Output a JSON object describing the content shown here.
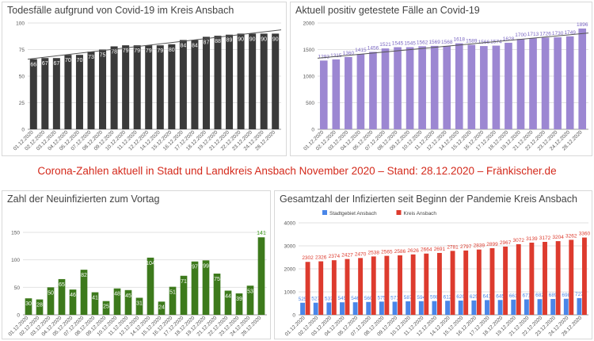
{
  "banner": "Corona-Zahlen aktuell in Stadt und Landkreis Ansbach November 2020 – Stand: 28.12.2020 – Fränkischer.de",
  "chart_data": [
    {
      "type": "bar",
      "title": "Todesfälle aufgrund von Covid-19 im Kreis Ansbach",
      "categories": [
        "01.12.2020",
        "02.12.2020",
        "03.12.2020",
        "04.12.2020",
        "05.12.2020",
        "07.12.2020",
        "08.12.2020",
        "09.12.2020",
        "10.12.2020",
        "11.12.2020",
        "12.12.2020",
        "14.12.2020",
        "15.12.2020",
        "16.12.2020",
        "17.12.2020",
        "18.12.2020",
        "19.12.2020",
        "21.12.2020",
        "22.12.2020",
        "23.12.2020",
        "24.12.2020",
        "28.12.2020"
      ],
      "series": [
        {
          "name": "Todesfälle",
          "color": "#3a3a3a",
          "values": [
            66,
            67,
            67,
            70,
            70,
            73,
            75,
            78,
            79,
            79,
            79,
            79,
            80,
            84,
            84,
            87,
            88,
            89,
            90,
            90,
            90,
            90
          ]
        }
      ],
      "ylim": [
        0,
        100
      ],
      "yticks": [
        0,
        25,
        50,
        75,
        100
      ],
      "trendline": true
    },
    {
      "type": "bar",
      "title": "Aktuell positiv getestete Fälle an Covid-19",
      "categories": [
        "01.12.2020",
        "02.12.2020",
        "03.12.2020",
        "04.12.2020",
        "05.12.2020",
        "07.12.2020",
        "08.12.2020",
        "09.12.2020",
        "10.12.2020",
        "11.12.2020",
        "12.12.2020",
        "14.12.2020",
        "15.12.2020",
        "16.12.2020",
        "17.12.2020",
        "18.12.2020",
        "19.12.2020",
        "21.12.2020",
        "22.12.2020",
        "23.12.2020",
        "24.12.2020",
        "28.12.2020"
      ],
      "series": [
        {
          "name": "Positiv getestete",
          "color": "#9c87d2",
          "values": [
            1293,
            1315,
            1360,
            1415,
            1456,
            1521,
            1545,
            1545,
            1562,
            1569,
            1568,
            1618,
            1589,
            1566,
            1574,
            1628,
            1700,
            1713,
            1726,
            1730,
            1749,
            1896
          ]
        }
      ],
      "ylim": [
        0,
        2000
      ],
      "yticks": [
        0,
        500,
        1000,
        1500,
        2000
      ],
      "trendline": true
    },
    {
      "type": "bar",
      "title": "Zahl der Neuinfizierten zum Vortag",
      "categories": [
        "01.12.2020",
        "02.12.2020",
        "03.12.2020",
        "04.12.2020",
        "05.12.2020",
        "07.12.2020",
        "08.12.2020",
        "09.12.2020",
        "10.12.2020",
        "11.12.2020",
        "12.12.2020",
        "14.12.2020",
        "15.12.2020",
        "16.12.2020",
        "17.12.2020",
        "18.12.2020",
        "19.12.2020",
        "21.12.2020",
        "22.12.2020",
        "23.12.2020",
        "24.12.2020",
        "28.12.2020"
      ],
      "series": [
        {
          "name": "Neuinfizierte",
          "color": "#3d7a1c",
          "values": [
            30,
            28,
            50,
            65,
            46,
            82,
            41,
            25,
            48,
            45,
            31,
            104,
            24,
            51,
            71,
            97,
            99,
            75,
            44,
            39,
            53,
            141
          ]
        }
      ],
      "ylim": [
        0,
        150
      ],
      "yticks": [
        0,
        50,
        100,
        150
      ]
    },
    {
      "type": "bar",
      "title": "Gesamtzahl der Infizierten seit Beginn der Pandemie Kreis Ansbach",
      "categories": [
        "01.12.2020",
        "02.12.2020",
        "03.12.2020",
        "04.12.2020",
        "05.12.2020",
        "07.12.2020",
        "08.12.2020",
        "09.12.2020",
        "10.12.2020",
        "11.12.2020",
        "12.12.2020",
        "14.12.2020",
        "15.12.2020",
        "16.12.2020",
        "17.12.2020",
        "18.12.2020",
        "19.12.2020",
        "21.12.2020",
        "22.12.2020",
        "23.12.2020",
        "24.12.2020",
        "28.12.2020"
      ],
      "series": [
        {
          "name": "Stadtgebiet Ansbach",
          "color": "#4a86e8",
          "values": [
            525,
            527,
            537,
            545,
            546,
            560,
            575,
            571,
            587,
            594,
            598,
            612,
            620,
            625,
            641,
            645,
            661,
            671,
            682,
            689,
            698,
            727
          ]
        },
        {
          "name": "Kreis Ansbach",
          "color": "#dd3b2e",
          "values": [
            2302,
            2326,
            2374,
            2427,
            2470,
            2538,
            2565,
            2586,
            2626,
            2664,
            2691,
            2781,
            2797,
            2839,
            2899,
            2967,
            3072,
            3139,
            3172,
            3204,
            3262,
            3360
          ]
        }
      ],
      "ylim": [
        0,
        4000
      ],
      "yticks": [
        0,
        1000,
        2000,
        3000,
        4000
      ],
      "legend": "top-left"
    }
  ]
}
